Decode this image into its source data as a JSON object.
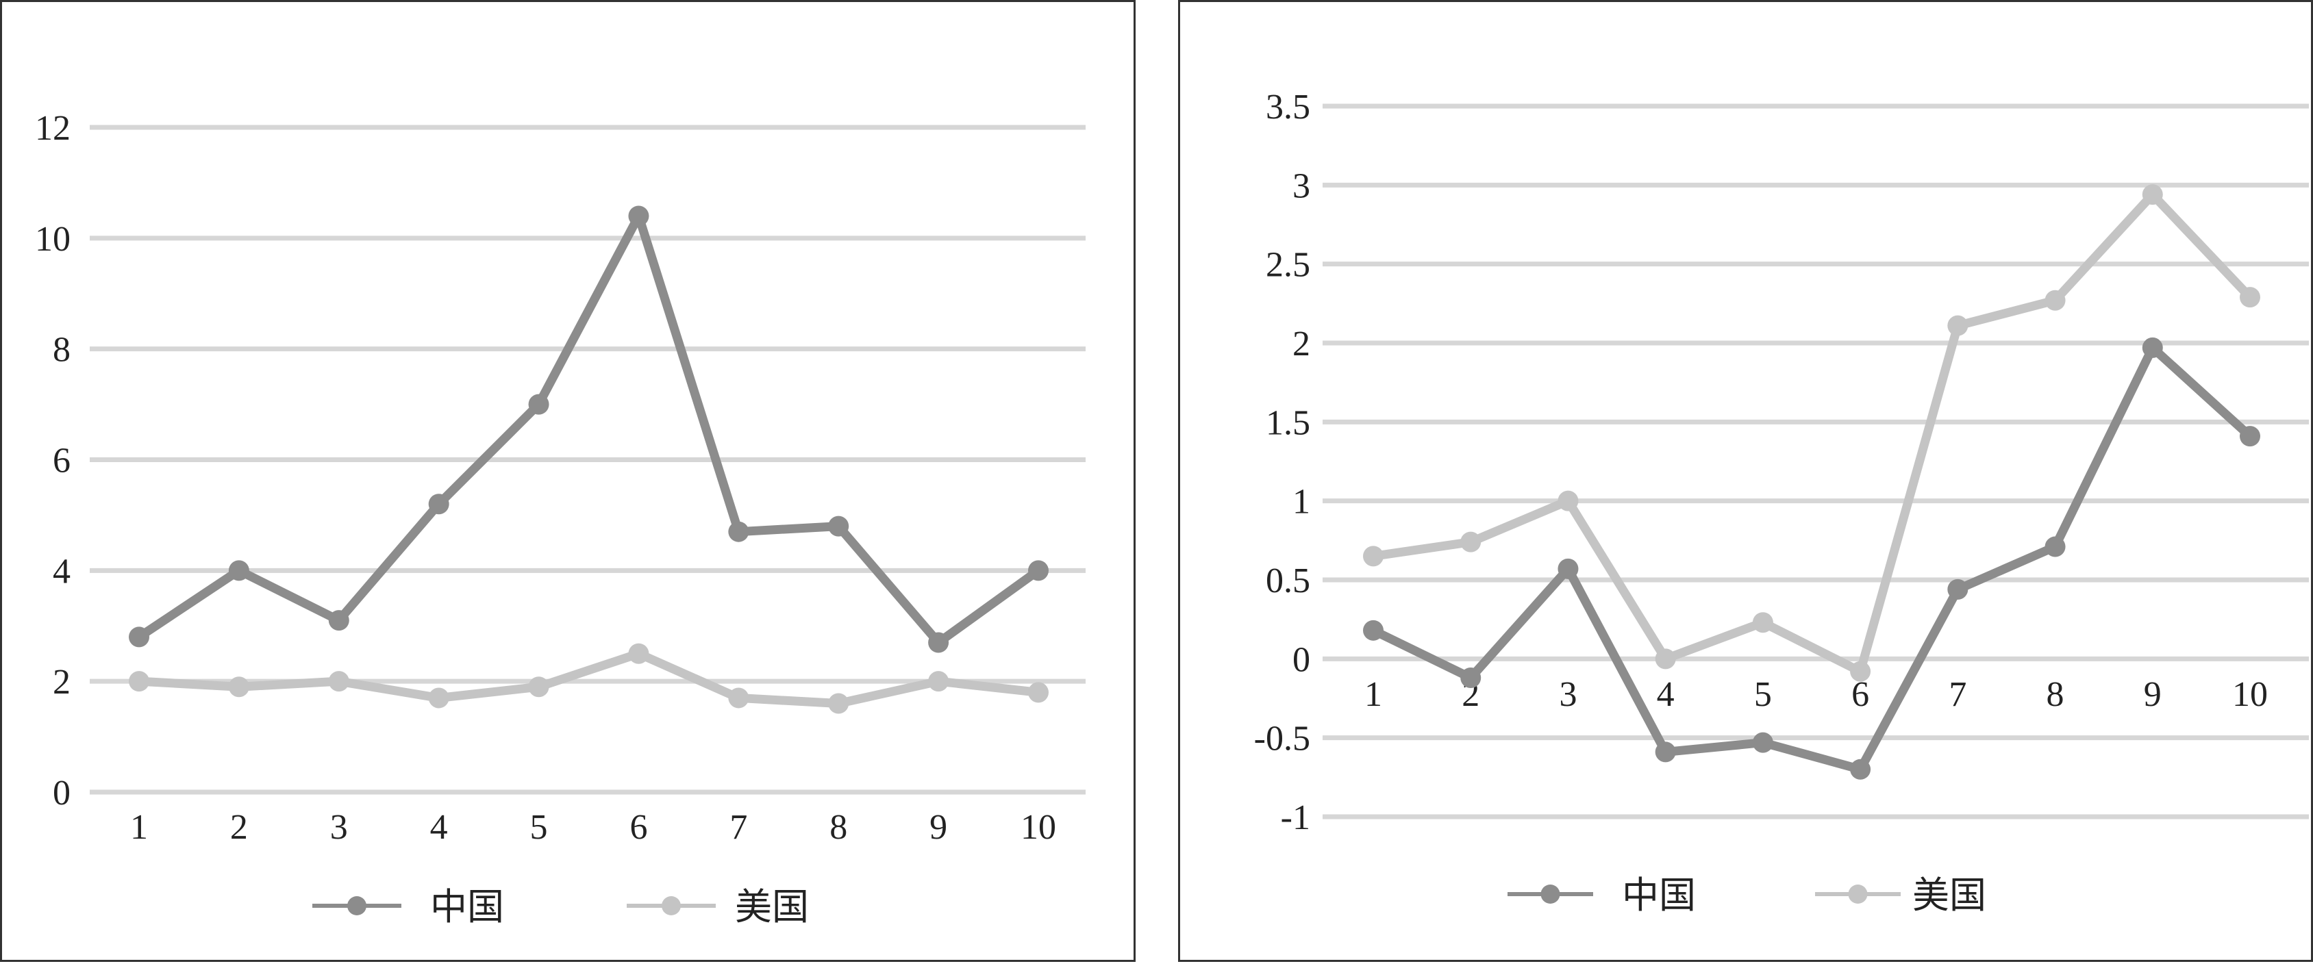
{
  "chart_data": [
    {
      "type": "line",
      "categories": [
        "1",
        "2",
        "3",
        "4",
        "5",
        "6",
        "7",
        "8",
        "9",
        "10"
      ],
      "yticks": [
        "0",
        "2",
        "4",
        "6",
        "8",
        "10",
        "12"
      ],
      "ylim": [
        0,
        12
      ],
      "grid": true,
      "legend_position": "bottom",
      "series": [
        {
          "name": "中国",
          "color": "#8c8c8c",
          "values": [
            2.8,
            4.0,
            3.1,
            5.2,
            7.0,
            10.4,
            4.7,
            4.8,
            2.7,
            4.0
          ]
        },
        {
          "name": "美国",
          "color": "#c4c4c4",
          "values": [
            2.0,
            1.9,
            2.0,
            1.7,
            1.9,
            2.5,
            1.7,
            1.6,
            2.0,
            1.8
          ]
        }
      ]
    },
    {
      "type": "line",
      "categories": [
        "1",
        "2",
        "3",
        "4",
        "5",
        "6",
        "7",
        "8",
        "9",
        "10"
      ],
      "yticks": [
        "-1",
        "-0.5",
        "0",
        "0.5",
        "1",
        "1.5",
        "2",
        "2.5",
        "3",
        "3.5"
      ],
      "ylim": [
        -1,
        3.5
      ],
      "grid": true,
      "legend_position": "bottom",
      "series": [
        {
          "name": "中国",
          "color": "#8c8c8c",
          "values": [
            0.18,
            -0.12,
            0.57,
            -0.59,
            -0.53,
            -0.7,
            0.44,
            0.71,
            1.97,
            1.41
          ]
        },
        {
          "name": "美国",
          "color": "#c4c4c4",
          "values": [
            0.65,
            0.74,
            1.0,
            0.0,
            0.23,
            -0.08,
            2.11,
            2.27,
            2.94,
            2.29
          ]
        }
      ]
    }
  ]
}
